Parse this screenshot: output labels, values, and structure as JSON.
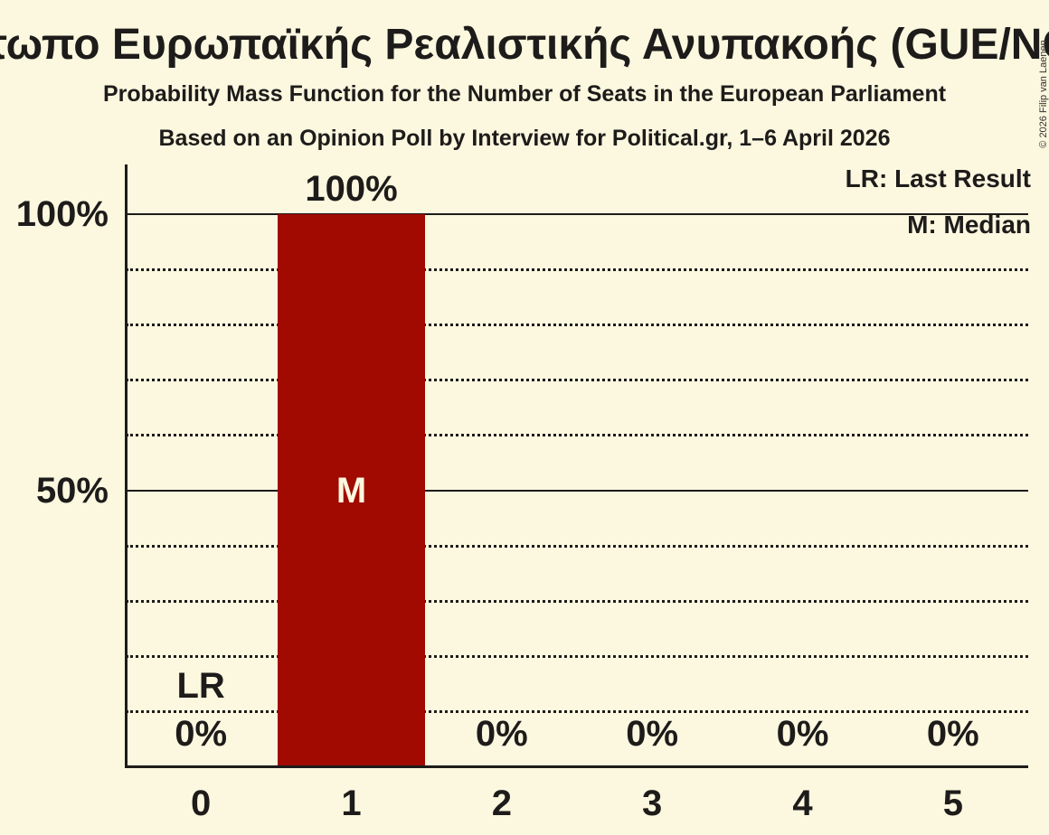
{
  "title": "Μέτωπο Ευρωπαϊκής Ρεαλιστικής Ανυπακοής (GUE/NGL)",
  "subtitle1": "Probability Mass Function for the Number of Seats in the European Parliament",
  "subtitle2": "Based on an Opinion Poll by Interview for Political.gr, 1–6 April 2026",
  "copyright": "© 2026 Filip van Laenen",
  "legend": {
    "lr": "LR: Last Result",
    "m": "M: Median"
  },
  "colors": {
    "background": "#FCF7DF",
    "bar": "#A00A00",
    "text": "#1D1C1A",
    "bar_marker_text": "#FCF7DF"
  },
  "chart_data": {
    "type": "bar",
    "categories": [
      "0",
      "1",
      "2",
      "3",
      "4",
      "5"
    ],
    "values": [
      0,
      100,
      0,
      0,
      0,
      0
    ],
    "bar_labels": [
      "0%",
      "100%",
      "0%",
      "0%",
      "0%",
      "0%"
    ],
    "median_index": 1,
    "median_marker": "M",
    "last_result_index": 0,
    "last_result_marker": "LR",
    "y_ticks": [
      {
        "label": "100%",
        "value": 100
      },
      {
        "label": "50%",
        "value": 50
      }
    ],
    "solid_gridlines": [
      100,
      50
    ],
    "dotted_gridlines": [
      90,
      80,
      70,
      60,
      40,
      30,
      20,
      10
    ],
    "ylim": [
      0,
      100
    ],
    "xlabel": "",
    "ylabel": "",
    "grid": true,
    "legend_position": "top-right"
  }
}
